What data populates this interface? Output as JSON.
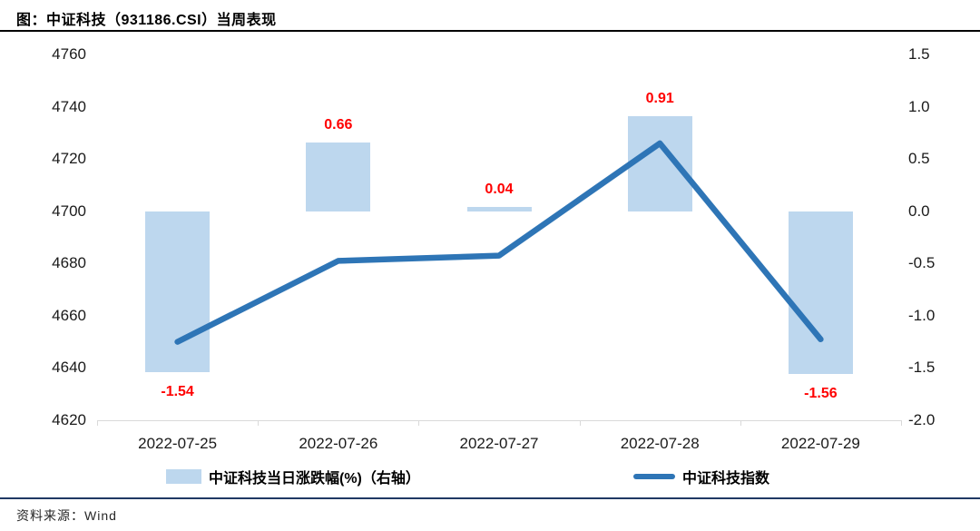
{
  "title": "图：中证科技（931186.CSI）当周表现",
  "source": "资料来源：Wind",
  "legend": {
    "bar_label": "中证科技当日涨跌幅(%)（右轴）",
    "line_label": "中证科技指数"
  },
  "colors": {
    "bar_fill": "#BDD7EE",
    "line_stroke": "#2E75B6",
    "data_label": "#FF0000",
    "axis_line": "#D9D9D9",
    "title_rule": "#000000",
    "bottom_rule": "#1F3864"
  },
  "chart_data": {
    "type": "bar",
    "subtype": "bar+line combo, dual axis",
    "categories": [
      "2022-07-25",
      "2022-07-26",
      "2022-07-27",
      "2022-07-28",
      "2022-07-29"
    ],
    "series": [
      {
        "name": "中证科技当日涨跌幅(%)（右轴）",
        "type": "bar",
        "axis": "right",
        "values": [
          -1.54,
          0.66,
          0.04,
          0.91,
          -1.56
        ],
        "labels": [
          "-1.54",
          "0.66",
          "0.04",
          "0.91",
          "-1.56"
        ]
      },
      {
        "name": "中证科技指数",
        "type": "line",
        "axis": "left",
        "values": [
          4650,
          4681,
          4683,
          4726,
          4651
        ]
      }
    ],
    "left_axis": {
      "min": 4620,
      "max": 4760,
      "tick_step": 20,
      "ticks": [
        "4760",
        "4740",
        "4720",
        "4700",
        "4680",
        "4660",
        "4640",
        "4620"
      ]
    },
    "right_axis": {
      "min": -2.0,
      "max": 1.5,
      "tick_step": 0.5,
      "ticks": [
        "1.5",
        "1.0",
        "0.5",
        "0.0",
        "-0.5",
        "-1.0",
        "-1.5",
        "-2.0"
      ]
    },
    "grid": false,
    "legend_position": "bottom"
  }
}
